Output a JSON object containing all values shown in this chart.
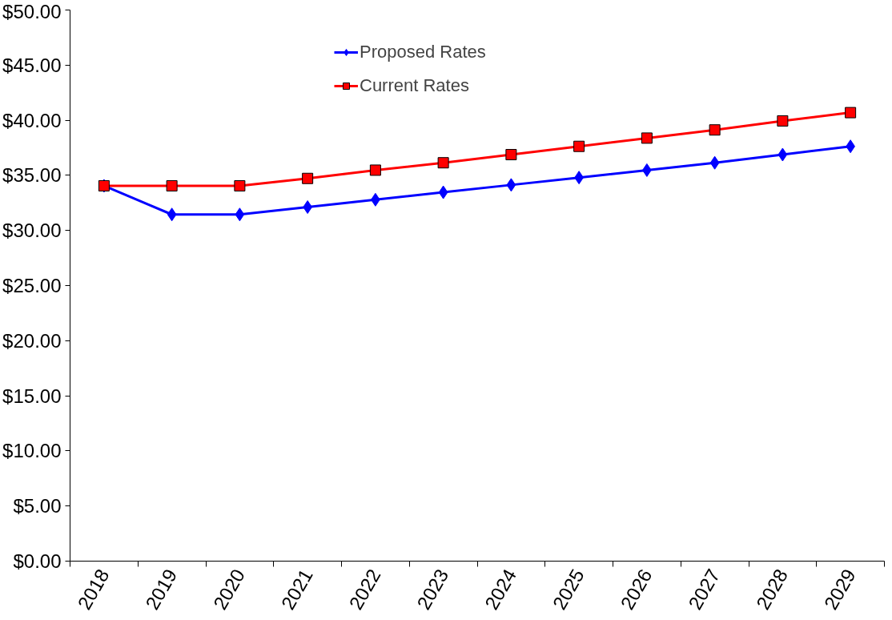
{
  "chart_data": {
    "type": "line",
    "categories": [
      "2018",
      "2019",
      "2020",
      "2021",
      "2022",
      "2023",
      "2024",
      "2025",
      "2026",
      "2027",
      "2028",
      "2029"
    ],
    "series": [
      {
        "name": "Proposed Rates",
        "color": "#0000ff",
        "marker": "diamond",
        "values": [
          34.05,
          31.45,
          31.45,
          32.12,
          32.79,
          33.46,
          34.13,
          34.8,
          35.47,
          36.14,
          36.88,
          37.63
        ]
      },
      {
        "name": "Current Rates",
        "color": "#ff0000",
        "marker": "square",
        "values": [
          34.05,
          34.05,
          34.05,
          34.72,
          35.47,
          36.14,
          36.88,
          37.63,
          38.38,
          39.12,
          39.94,
          40.69
        ]
      }
    ],
    "ylim": [
      0,
      50
    ],
    "yticks": [
      {
        "value": 0,
        "label": "$0.00"
      },
      {
        "value": 5,
        "label": "$5.00"
      },
      {
        "value": 10,
        "label": "$10.00"
      },
      {
        "value": 15,
        "label": "$15.00"
      },
      {
        "value": 20,
        "label": "$20.00"
      },
      {
        "value": 25,
        "label": "$25.00"
      },
      {
        "value": 30,
        "label": "$30.00"
      },
      {
        "value": 35,
        "label": "$35.00"
      },
      {
        "value": 40,
        "label": "$40.00"
      },
      {
        "value": 45,
        "label": "$45.00"
      },
      {
        "value": 50,
        "label": "$50.00"
      }
    ],
    "grid": false,
    "legend": "top",
    "line_style": "solid"
  }
}
